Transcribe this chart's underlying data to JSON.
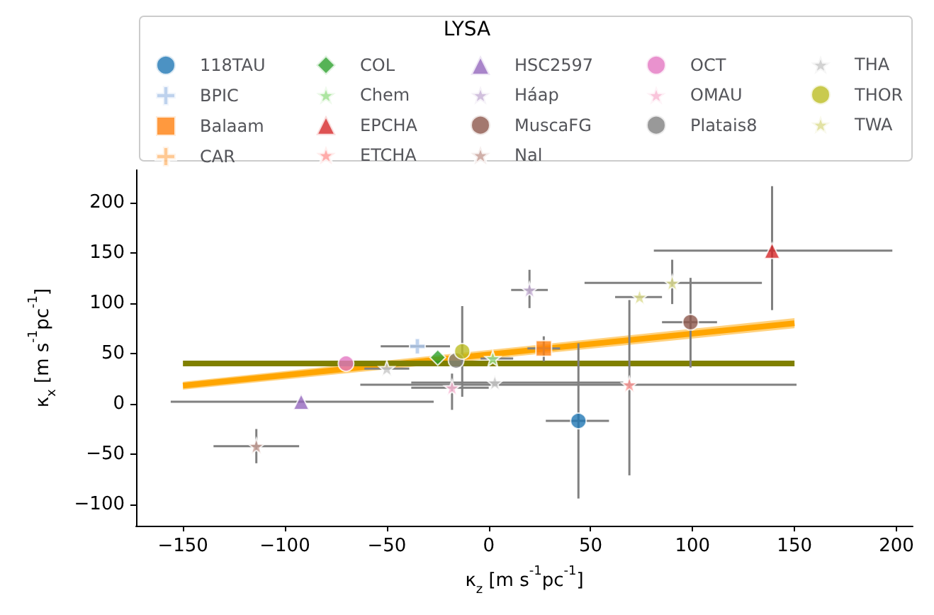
{
  "chart_data": {
    "type": "scatter",
    "legend_title": "LYSA",
    "xlabel": "κ$_{z}$ [m s$^{-1}$pc$^{-1}$]",
    "ylabel": "κ$_{x}$ [m s$^{-1}$pc$^{-1}$]",
    "xlim": [
      -173,
      208
    ],
    "ylim": [
      -121,
      232
    ],
    "xticks": [
      -150,
      -100,
      -50,
      0,
      50,
      100,
      150,
      200
    ],
    "yticks": [
      -100,
      -50,
      0,
      50,
      100,
      150,
      200
    ],
    "grid": false,
    "legend": "top",
    "series": [
      {
        "type": "line",
        "color": "#ffa500",
        "x": [
          -150,
          150
        ],
        "values": [
          18,
          80
        ],
        "lower": [
          14,
          75
        ],
        "upper": [
          22,
          85
        ],
        "marker": "none"
      },
      {
        "type": "line",
        "color": "#808000",
        "x": [
          -150,
          150
        ],
        "values": [
          40,
          40
        ],
        "marker": "none"
      },
      {
        "name": "118TAU",
        "color": "#1f77b4",
        "marker": "circle",
        "x": [
          44
        ],
        "values": [
          -17
        ],
        "xerrors": [
          [
            28,
            59
          ]
        ],
        "errors": [
          [
            -94,
            60
          ]
        ]
      },
      {
        "name": "BPIC",
        "color": "#aec7e8",
        "marker": "cross",
        "x": [
          -35
        ],
        "values": [
          57
        ],
        "xerrors": [
          [
            -53,
            -19
          ]
        ],
        "errors": [
          null
        ]
      },
      {
        "name": "Balaam",
        "color": "#ff7f0e",
        "marker": "square",
        "x": [
          27
        ],
        "values": [
          55
        ],
        "xerrors": [
          [
            19,
            35
          ]
        ],
        "errors": [
          [
            42,
            67
          ]
        ]
      },
      {
        "name": "CAR",
        "color": "#ffbb78",
        "marker": "cross",
        "x": [
          null
        ],
        "values": [
          null
        ]
      },
      {
        "name": "COL",
        "color": "#2ca02c",
        "marker": "diamond",
        "x": [
          -25
        ],
        "values": [
          46
        ],
        "xerrors": [
          null
        ],
        "errors": [
          null
        ]
      },
      {
        "name": "Chem",
        "color": "#98df8a",
        "marker": "star",
        "x": [
          2
        ],
        "values": [
          45
        ],
        "xerrors": [
          [
            -4,
            12
          ]
        ],
        "errors": [
          null
        ]
      },
      {
        "name": "EPCHA",
        "color": "#d62728",
        "marker": "triangle",
        "x": [
          139
        ],
        "values": [
          152
        ],
        "xerrors": [
          [
            81,
            198
          ]
        ],
        "errors": [
          [
            93,
            216
          ]
        ]
      },
      {
        "name": "ETCHA",
        "color": "#ff9896",
        "marker": "star",
        "x": [
          69
        ],
        "values": [
          19
        ],
        "xerrors": [
          [
            -63,
            151
          ]
        ],
        "errors": [
          [
            -71,
            103
          ]
        ]
      },
      {
        "name": "HSC2597",
        "color": "#9467bd",
        "marker": "triangle",
        "x": [
          -92
        ],
        "values": [
          2
        ],
        "xerrors": [
          [
            -156,
            -27
          ]
        ],
        "errors": [
          null
        ]
      },
      {
        "name": "Háap",
        "color": "#c5b0d5",
        "marker": "star",
        "x": [
          20
        ],
        "values": [
          113
        ],
        "xerrors": [
          [
            11,
            29
          ]
        ],
        "errors": [
          [
            95,
            133
          ]
        ]
      },
      {
        "name": "MuscaFG",
        "color": "#8c564b",
        "marker": "circle",
        "x": [
          99
        ],
        "values": [
          81
        ],
        "xerrors": [
          [
            85,
            112
          ]
        ],
        "errors": [
          [
            36,
            125
          ]
        ]
      },
      {
        "name": "Nal",
        "color": "#c49c94",
        "marker": "star",
        "x": [
          -114
        ],
        "values": [
          -42
        ],
        "xerrors": [
          [
            -135,
            -93
          ]
        ],
        "errors": [
          [
            -59,
            -25
          ]
        ]
      },
      {
        "name": "OCT",
        "color": "#e377c2",
        "marker": "circle",
        "x": [
          -70
        ],
        "values": [
          40
        ],
        "xerrors": [
          null
        ],
        "errors": [
          null
        ]
      },
      {
        "name": "OMAU",
        "color": "#f7b6d2",
        "marker": "star",
        "x": [
          -18
        ],
        "values": [
          16
        ],
        "xerrors": [
          [
            -38,
            0
          ]
        ],
        "errors": [
          [
            -6,
            30
          ]
        ]
      },
      {
        "name": "Platais8",
        "color": "#7f7f7f",
        "marker": "circle",
        "x": [
          -16
        ],
        "values": [
          43
        ],
        "xerrors": [
          null
        ],
        "errors": [
          null
        ]
      },
      {
        "name": "THA",
        "color": "#c7c7c7",
        "marker": "star",
        "x": [
          -50,
          3
        ],
        "values": [
          35,
          21
        ],
        "xerrors": [
          [
            -61,
            -39
          ],
          [
            -38,
            66
          ]
        ],
        "errors": [
          null,
          null
        ]
      },
      {
        "name": "THOR",
        "color": "#bcbd22",
        "marker": "circle",
        "x": [
          -13
        ],
        "values": [
          52
        ],
        "xerrors": [
          null
        ],
        "errors": [
          [
            7,
            97
          ]
        ]
      },
      {
        "name": "TWA",
        "color": "#dbdb8d",
        "marker": "star",
        "x": [
          74,
          90
        ],
        "values": [
          106,
          120
        ],
        "xerrors": [
          [
            62,
            85
          ],
          [
            47,
            134
          ]
        ],
        "errors": [
          null,
          [
            99,
            143
          ]
        ]
      }
    ]
  }
}
